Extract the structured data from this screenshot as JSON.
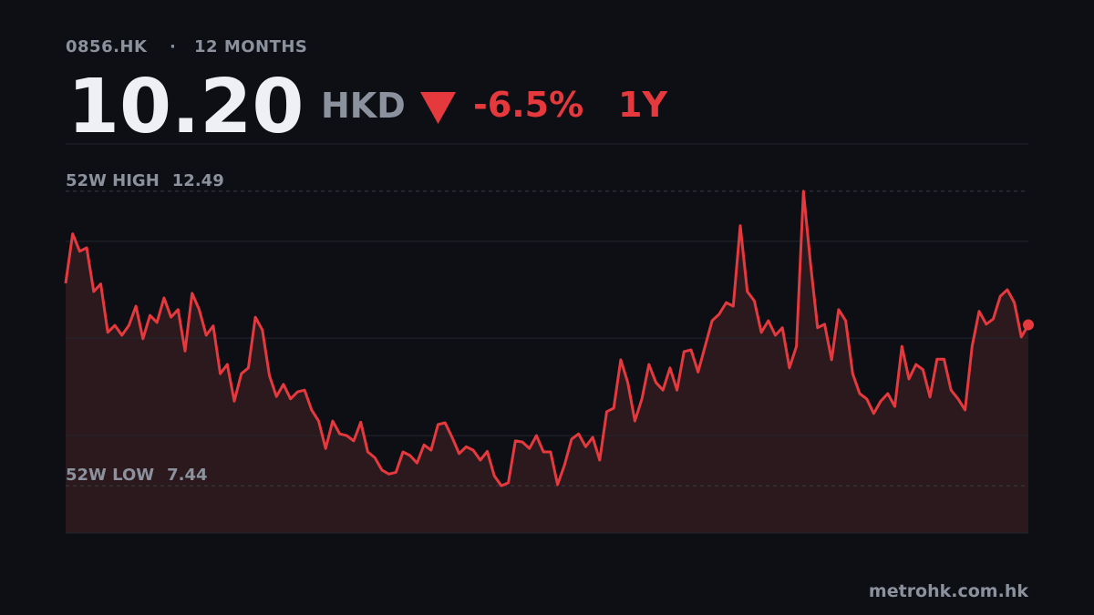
{
  "header": {
    "ticker": "0856.HK",
    "period": "12 MONTHS",
    "price": "10.20",
    "currency": "HKD",
    "change": "-6.5%",
    "range": "1Y"
  },
  "chart_data": {
    "type": "area",
    "color": "#e5393d",
    "values": [
      10.91,
      11.76,
      11.46,
      11.52,
      10.77,
      10.9,
      10.07,
      10.19,
      10.02,
      10.19,
      10.52,
      9.96,
      10.36,
      10.24,
      10.66,
      10.33,
      10.46,
      9.75,
      10.74,
      10.46,
      10.02,
      10.18,
      9.36,
      9.52,
      8.89,
      9.36,
      9.46,
      10.33,
      10.11,
      9.33,
      8.97,
      9.18,
      8.93,
      9.05,
      9.08,
      8.74,
      8.55,
      8.08,
      8.55,
      8.33,
      8.3,
      8.21,
      8.53,
      8.02,
      7.92,
      7.71,
      7.64,
      7.67,
      8.02,
      7.96,
      7.83,
      8.14,
      8.05,
      8.49,
      8.52,
      8.27,
      7.99,
      8.11,
      8.05,
      7.88,
      8.03,
      7.61,
      7.44,
      7.49,
      8.21,
      8.19,
      8.08,
      8.3,
      8.02,
      8.02,
      7.46,
      7.8,
      8.24,
      8.33,
      8.11,
      8.27,
      7.88,
      8.71,
      8.77,
      9.6,
      9.21,
      8.55,
      8.93,
      9.52,
      9.21,
      9.08,
      9.46,
      9.08,
      9.74,
      9.77,
      9.39,
      9.83,
      10.27,
      10.38,
      10.58,
      10.52,
      11.9,
      10.77,
      10.61,
      10.07,
      10.27,
      10.02,
      10.15,
      9.46,
      9.83,
      12.49,
      11.24,
      10.15,
      10.21,
      9.6,
      10.46,
      10.27,
      9.36,
      9.02,
      8.93,
      8.68,
      8.89,
      9.02,
      8.8,
      9.83,
      9.27,
      9.52,
      9.43,
      8.96,
      9.61,
      9.61,
      9.08,
      8.93,
      8.74,
      9.83,
      10.43,
      10.21,
      10.3,
      10.69,
      10.8,
      10.58,
      9.99,
      10.2
    ],
    "ylim": [
      6.63,
      13.3
    ],
    "yticks": [
      6.63,
      8.3,
      9.97,
      11.63,
      13.3
    ],
    "grid": true,
    "reference_lines": [
      {
        "label": "52W HIGH",
        "value": 12.49
      },
      {
        "label": "52W LOW",
        "value": 7.44
      }
    ]
  },
  "footer": {
    "source": "metrohk.com.hk"
  }
}
